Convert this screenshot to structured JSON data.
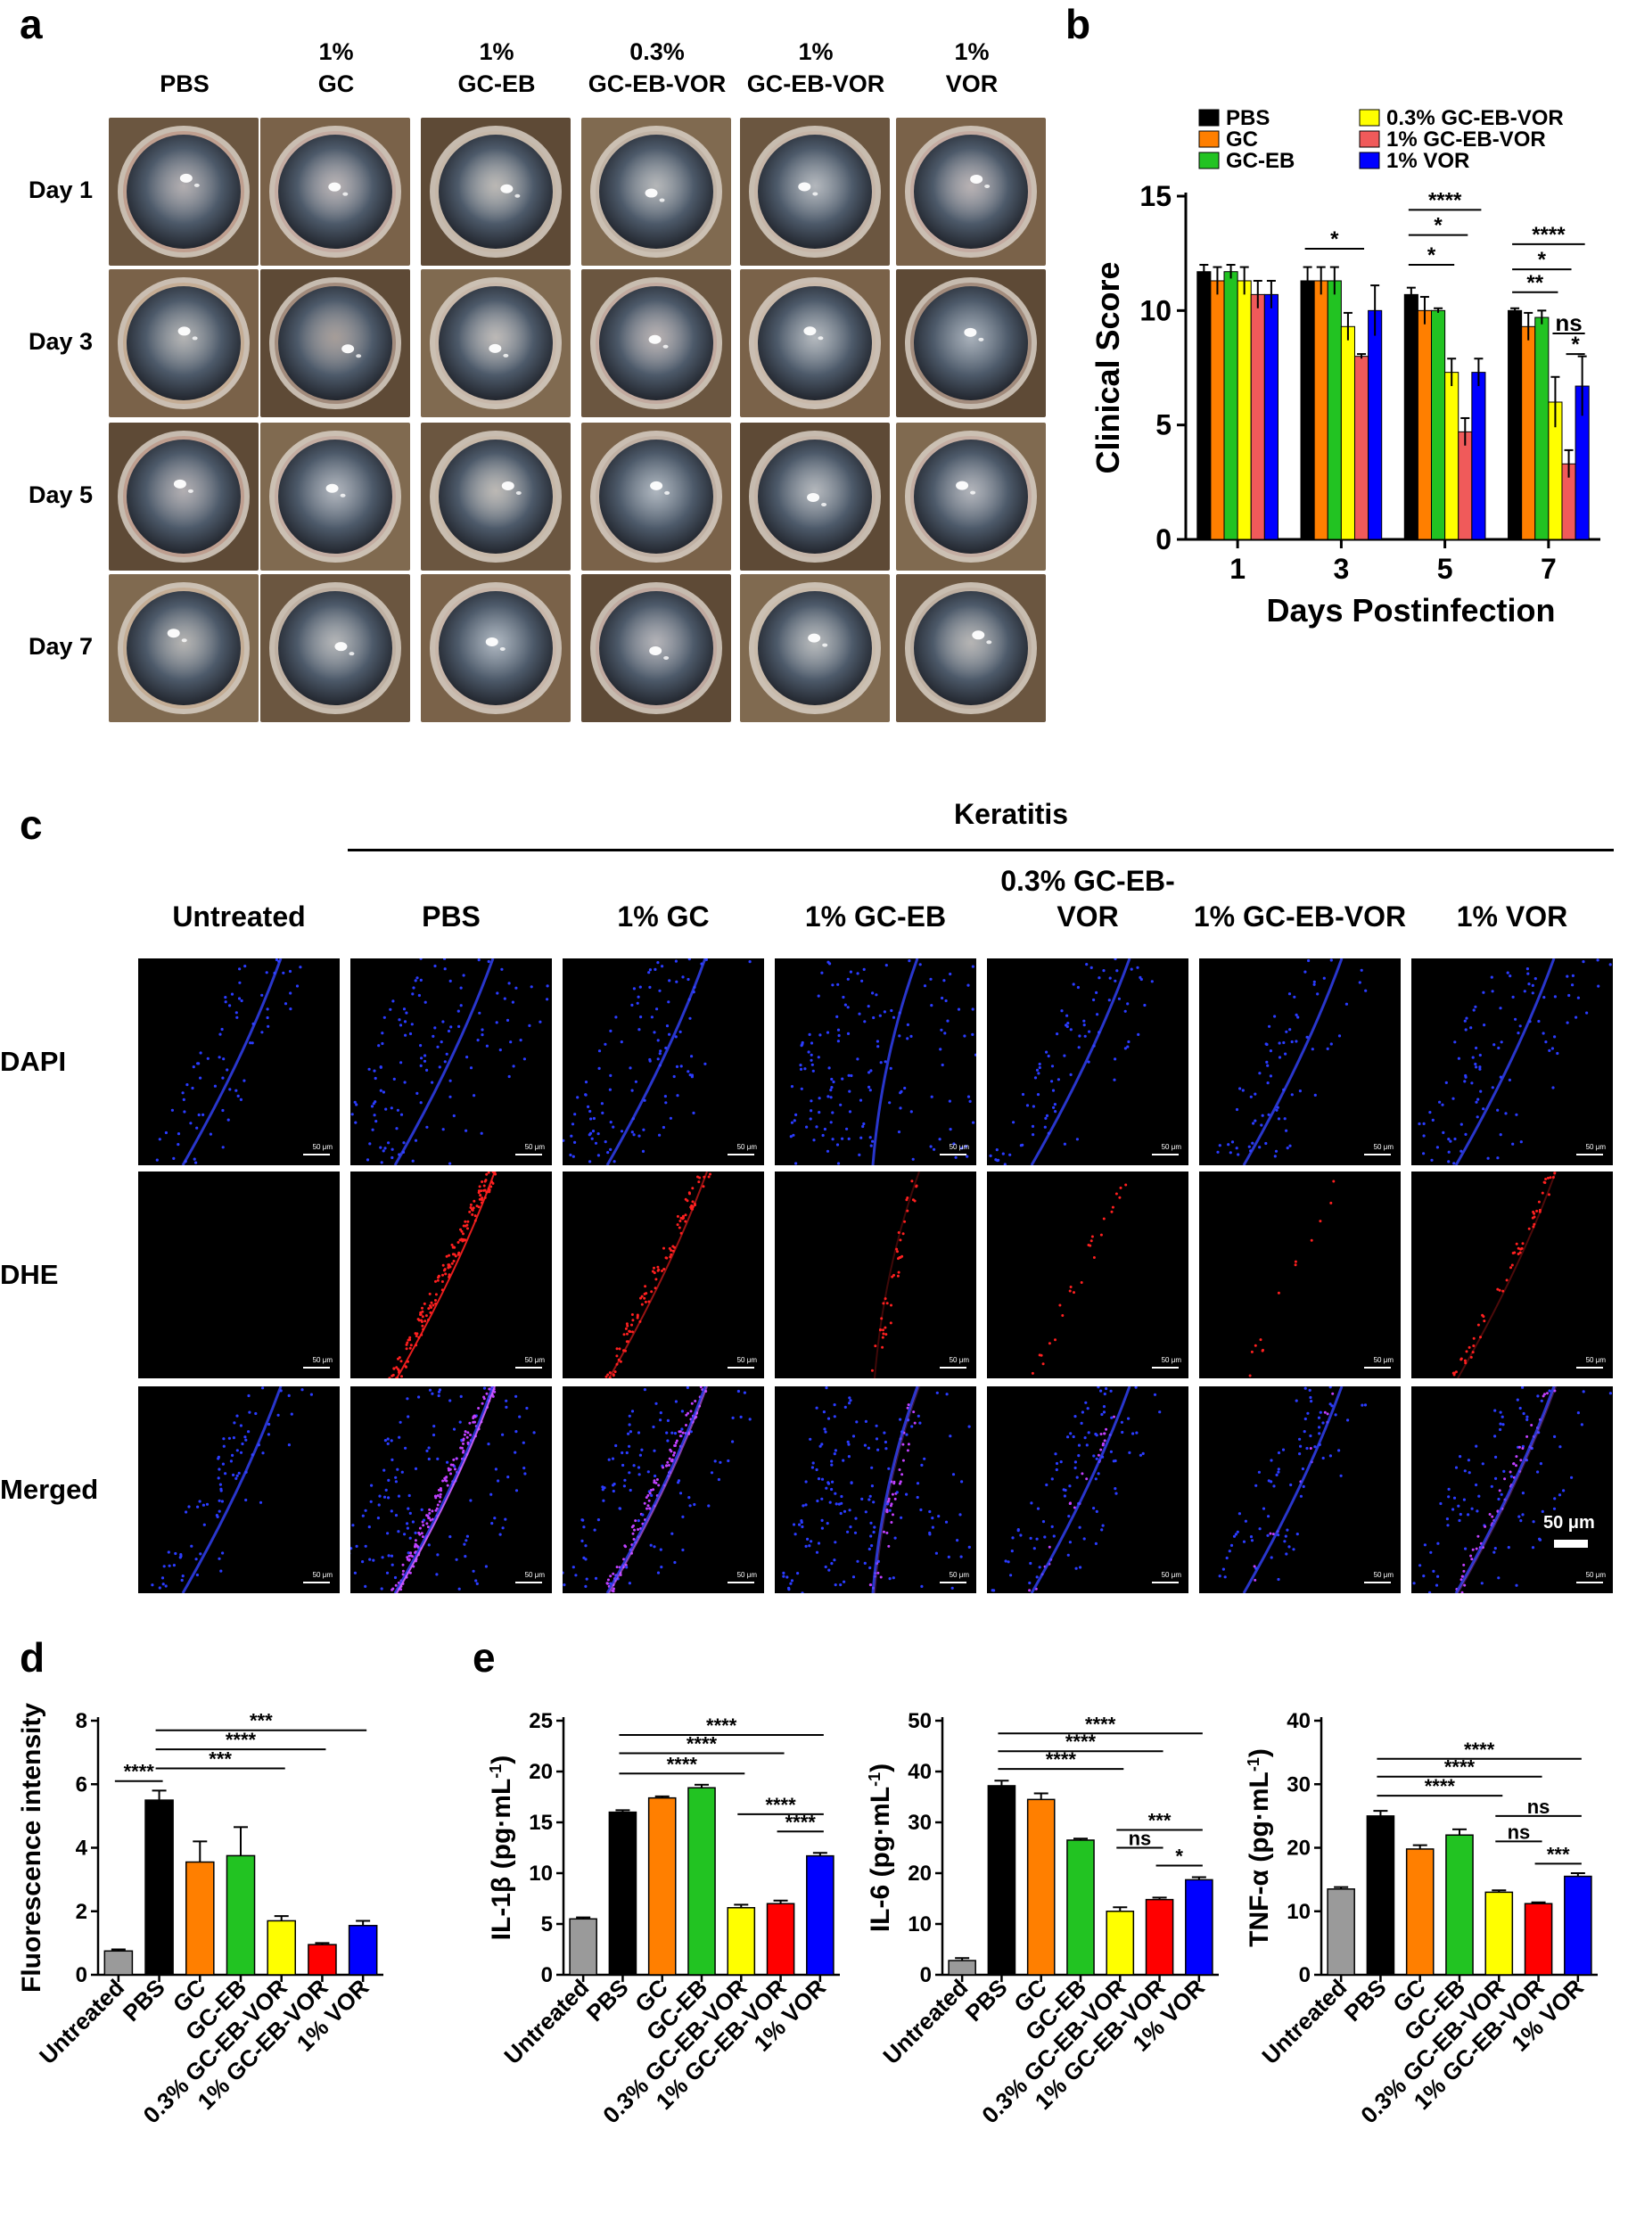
{
  "panel_a": {
    "letter": "a",
    "columns": [
      {
        "line1": "",
        "line2": "PBS"
      },
      {
        "line1": "1%",
        "line2": "GC"
      },
      {
        "line1": "1%",
        "line2": "GC-EB"
      },
      {
        "line1": "0.3%",
        "line2": "GC-EB-VOR"
      },
      {
        "line1": "1%",
        "line2": "GC-EB-VOR"
      },
      {
        "line1": "1%",
        "line2": "VOR"
      }
    ],
    "rows": [
      "Day 1",
      "Day 3",
      "Day 5",
      "Day 7"
    ]
  },
  "panel_b": {
    "letter": "b"
  },
  "panel_c": {
    "letter": "c",
    "group_label": "Keratitis",
    "columns": [
      {
        "line1": "Untreated",
        "line2": ""
      },
      {
        "line1": "PBS",
        "line2": ""
      },
      {
        "line1": "1% GC",
        "line2": ""
      },
      {
        "line1": "1% GC-EB",
        "line2": ""
      },
      {
        "line1": "0.3% GC-EB-",
        "line2": "VOR"
      },
      {
        "line1": "1% GC-EB-VOR",
        "line2": ""
      },
      {
        "line1": "1% VOR",
        "line2": ""
      }
    ],
    "rows": [
      "DAPI",
      "DHE",
      "Merged"
    ],
    "scale_small": "50 μm",
    "scale_big": "50 μm"
  },
  "panel_d": {
    "letter": "d"
  },
  "panel_e": {
    "letter": "e"
  },
  "colors": {
    "black": "#000000",
    "orange": "#ff7f00",
    "green": "#22c322",
    "yellow": "#ffff00",
    "red_b": "#f05a5a",
    "red": "#ff0000",
    "blue": "#0000ff",
    "gray": "#9a9a9a"
  },
  "chart_data": [
    {
      "id": "b",
      "type": "bar",
      "ylabel": "Clinical Score",
      "xlabel": "Days Postinfection",
      "categories": [
        "1",
        "3",
        "5",
        "7"
      ],
      "ylim": [
        0,
        15
      ],
      "yticks": [
        0,
        5,
        10,
        15
      ],
      "legend": "top",
      "series": [
        {
          "name": "PBS",
          "color": "#000000",
          "values": [
            11.7,
            11.3,
            10.7,
            10.0
          ],
          "errors": [
            0.3,
            0.6,
            0.3,
            0.1
          ]
        },
        {
          "name": "GC",
          "color": "#ff7f00",
          "values": [
            11.3,
            11.3,
            10.0,
            9.3
          ],
          "errors": [
            0.6,
            0.6,
            0.6,
            0.6
          ]
        },
        {
          "name": "GC-EB",
          "color": "#22c322",
          "values": [
            11.7,
            11.3,
            10.0,
            9.7
          ],
          "errors": [
            0.3,
            0.6,
            0.1,
            0.3
          ]
        },
        {
          "name": "0.3% GC-EB-VOR",
          "color": "#ffff00",
          "values": [
            11.3,
            9.3,
            7.3,
            6.0
          ],
          "errors": [
            0.6,
            0.6,
            0.6,
            1.1
          ]
        },
        {
          "name": "1% GC-EB-VOR",
          "color": "#f05a5a",
          "values": [
            10.7,
            8.0,
            4.7,
            3.3
          ],
          "errors": [
            0.6,
            0.1,
            0.6,
            0.6
          ]
        },
        {
          "name": "1% VOR",
          "color": "#0000ff",
          "values": [
            10.7,
            10.0,
            7.3,
            6.7
          ],
          "errors": [
            0.6,
            1.1,
            0.6,
            1.3
          ]
        }
      ],
      "annotations": [
        {
          "group": 1,
          "from": 0,
          "to": 4,
          "label": "*",
          "y": 12.7
        },
        {
          "group": 2,
          "from": 0,
          "to": 3,
          "label": "*",
          "y": 12.0
        },
        {
          "group": 2,
          "from": 0,
          "to": 4,
          "label": "*",
          "y": 13.3
        },
        {
          "group": 2,
          "from": 0,
          "to": 5,
          "label": "****",
          "y": 14.4
        },
        {
          "group": 3,
          "from": 0,
          "to": 3,
          "label": "**",
          "y": 10.8
        },
        {
          "group": 3,
          "from": 0,
          "to": 4,
          "label": "*",
          "y": 11.8
        },
        {
          "group": 3,
          "from": 0,
          "to": 5,
          "label": "****",
          "y": 12.9
        },
        {
          "group": 3,
          "from": 3,
          "to": 5,
          "label": "ns",
          "y": 9.0
        },
        {
          "group": 3,
          "from": 4,
          "to": 5,
          "label": "*",
          "y": 8.1
        }
      ]
    },
    {
      "id": "d",
      "type": "bar",
      "ylabel": "Fluorescence intensity",
      "categories": [
        "Untreated",
        "PBS",
        "GC",
        "GC-EB",
        "0.3% GC-EB-VOR",
        "1% GC-EB-VOR",
        "1% VOR"
      ],
      "values": [
        0.75,
        5.5,
        3.55,
        3.75,
        1.7,
        0.95,
        1.55
      ],
      "errors": [
        0.05,
        0.3,
        0.65,
        0.9,
        0.15,
        0.05,
        0.15
      ],
      "colors": [
        "#9a9a9a",
        "#000000",
        "#ff7f00",
        "#22c322",
        "#ffff00",
        "#ff0000",
        "#0000ff"
      ],
      "ylim": [
        0,
        8
      ],
      "yticks": [
        0,
        2,
        4,
        6,
        8
      ],
      "annotations": [
        {
          "from": 0,
          "to": 1,
          "label": "****",
          "y": 6.1
        },
        {
          "from": 1,
          "to": 4,
          "label": "***",
          "y": 6.5
        },
        {
          "from": 1,
          "to": 5,
          "label": "****",
          "y": 7.1
        },
        {
          "from": 1,
          "to": 6,
          "label": "***",
          "y": 7.7
        }
      ]
    },
    {
      "id": "e1",
      "type": "bar",
      "ylabel": "IL-1β (pg·mL",
      "ylabel_sup": "-1",
      "ylabel_end": ")",
      "categories": [
        "Untreated",
        "PBS",
        "GC",
        "GC-EB",
        "0.3% GC-EB-VOR",
        "1% GC-EB-VOR",
        "1% VOR"
      ],
      "values": [
        5.5,
        16.0,
        17.4,
        18.4,
        6.6,
        7.0,
        11.7
      ],
      "errors": [
        0.15,
        0.2,
        0.15,
        0.3,
        0.3,
        0.3,
        0.3
      ],
      "colors": [
        "#9a9a9a",
        "#000000",
        "#ff7f00",
        "#22c322",
        "#ffff00",
        "#ff0000",
        "#0000ff"
      ],
      "ylim": [
        0,
        25
      ],
      "yticks": [
        0,
        5,
        10,
        15,
        20,
        25
      ],
      "annotations": [
        {
          "from": 1,
          "to": 4,
          "label": "****",
          "y": 19.8
        },
        {
          "from": 1,
          "to": 5,
          "label": "****",
          "y": 21.8
        },
        {
          "from": 1,
          "to": 6,
          "label": "****",
          "y": 23.6
        },
        {
          "from": 4,
          "to": 6,
          "label": "****",
          "y": 15.8
        },
        {
          "from": 5,
          "to": 6,
          "label": "****",
          "y": 14.1
        }
      ]
    },
    {
      "id": "e2",
      "type": "bar",
      "ylabel": "IL-6 (pg·mL",
      "ylabel_sup": "-1",
      "ylabel_end": ")",
      "categories": [
        "Untreated",
        "PBS",
        "GC",
        "GC-EB",
        "0.3% GC-EB-VOR",
        "1% GC-EB-VOR",
        "1% VOR"
      ],
      "values": [
        2.8,
        37.2,
        34.5,
        26.5,
        12.5,
        14.8,
        18.7
      ],
      "errors": [
        0.5,
        1.0,
        1.2,
        0.3,
        0.8,
        0.4,
        0.5
      ],
      "colors": [
        "#9a9a9a",
        "#000000",
        "#ff7f00",
        "#22c322",
        "#ffff00",
        "#ff0000",
        "#0000ff"
      ],
      "ylim": [
        0,
        50
      ],
      "yticks": [
        0,
        10,
        20,
        30,
        40,
        50
      ],
      "annotations": [
        {
          "from": 1,
          "to": 4,
          "label": "****",
          "y": 40.5
        },
        {
          "from": 1,
          "to": 5,
          "label": "****",
          "y": 44.0
        },
        {
          "from": 1,
          "to": 6,
          "label": "****",
          "y": 47.5
        },
        {
          "from": 4,
          "to": 5,
          "label": "ns",
          "y": 25.0
        },
        {
          "from": 4,
          "to": 6,
          "label": "***",
          "y": 28.5
        },
        {
          "from": 5,
          "to": 6,
          "label": "*",
          "y": 21.5
        }
      ]
    },
    {
      "id": "e3",
      "type": "bar",
      "ylabel": "TNF-α (pg·mL",
      "ylabel_sup": "-1",
      "ylabel_end": ")",
      "categories": [
        "Untreated",
        "PBS",
        "GC",
        "GC-EB",
        "0.3% GC-EB-VOR",
        "1% GC-EB-VOR",
        "1% VOR"
      ],
      "values": [
        13.5,
        25.0,
        19.8,
        22.0,
        13.0,
        11.2,
        15.5
      ],
      "errors": [
        0.3,
        0.8,
        0.6,
        0.9,
        0.3,
        0.2,
        0.5
      ],
      "colors": [
        "#9a9a9a",
        "#000000",
        "#ff7f00",
        "#22c322",
        "#ffff00",
        "#ff0000",
        "#0000ff"
      ],
      "ylim": [
        0,
        40
      ],
      "yticks": [
        0,
        10,
        20,
        30,
        40
      ],
      "annotations": [
        {
          "from": 1,
          "to": 4,
          "label": "****",
          "y": 28.2
        },
        {
          "from": 1,
          "to": 5,
          "label": "****",
          "y": 31.2
        },
        {
          "from": 1,
          "to": 6,
          "label": "****",
          "y": 34.0
        },
        {
          "from": 4,
          "to": 5,
          "label": "ns",
          "y": 21.0
        },
        {
          "from": 4,
          "to": 6,
          "label": "ns",
          "y": 25.0
        },
        {
          "from": 5,
          "to": 6,
          "label": "***",
          "y": 17.5
        }
      ]
    }
  ]
}
